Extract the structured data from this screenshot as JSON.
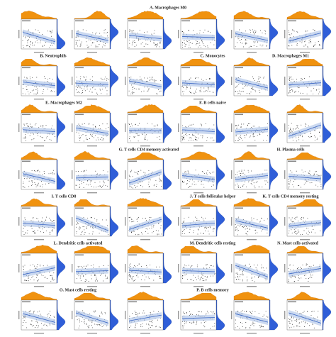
{
  "figure": {
    "panel_labels": [
      "A. Macrophages M0",
      "B. Neutrophils",
      "C. Monocytes",
      "D. Macrophages M1",
      "E. Macrophages M2",
      "F. B cells naive",
      "G. T cells CD4 memory activated",
      "H. Plasma cells",
      "I. T cells CD8",
      "J. T cells follicular helper",
      "K. T cells CD4 memory resting",
      "L. Dendritic cells activated",
      "M. Dendritic cells resting",
      "N. Mast cells activated",
      "O. Mast cells resting",
      "P. B cells memory"
    ]
  }
}
